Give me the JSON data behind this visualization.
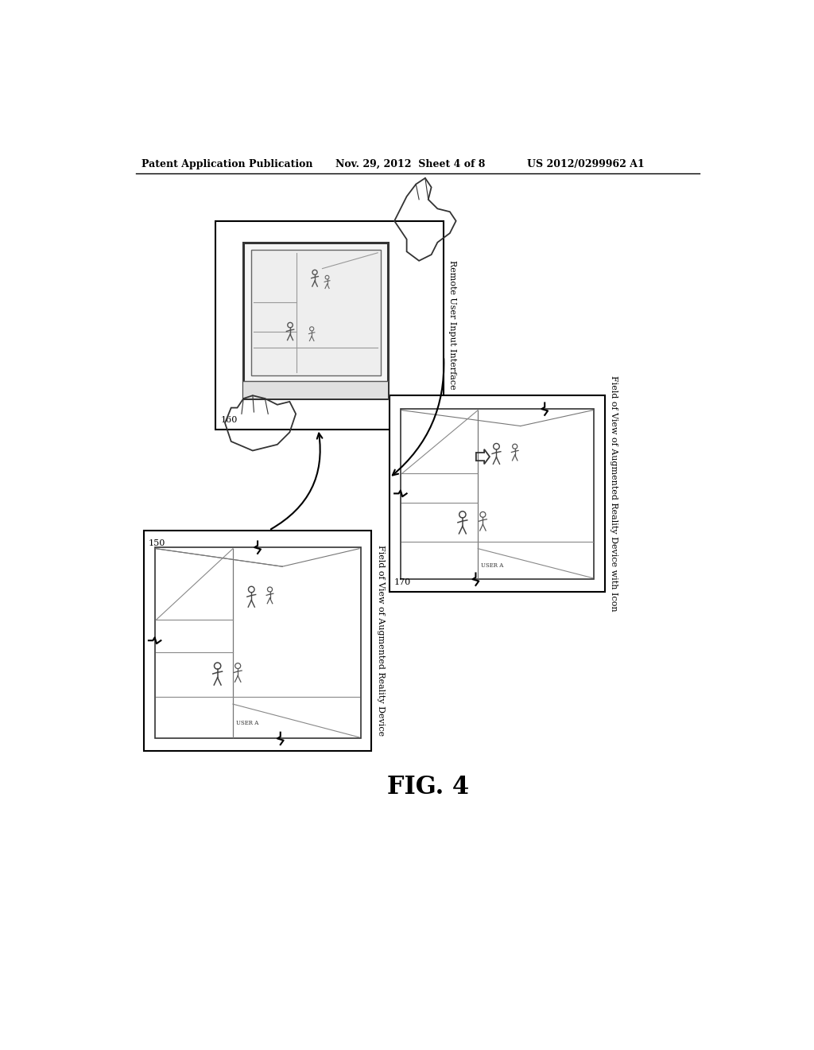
{
  "title_left": "Patent Application Publication",
  "title_mid": "Nov. 29, 2012  Sheet 4 of 8",
  "title_right": "US 2012/0299962 A1",
  "fig_label": "FIG. 4",
  "box1_label": "160",
  "box1_title": "Remote User Input Interface",
  "box2_label": "150",
  "box2_title": "Field of View of Augmented Reality Device",
  "box3_label": "170",
  "box3_title": "Field of View of Augmented Reality Device with Icon",
  "bg_color": "#ffffff",
  "text_color": "#000000",
  "line_color": "#000000",
  "gray_line": "#888888",
  "gray_fill": "#d8d8d8"
}
